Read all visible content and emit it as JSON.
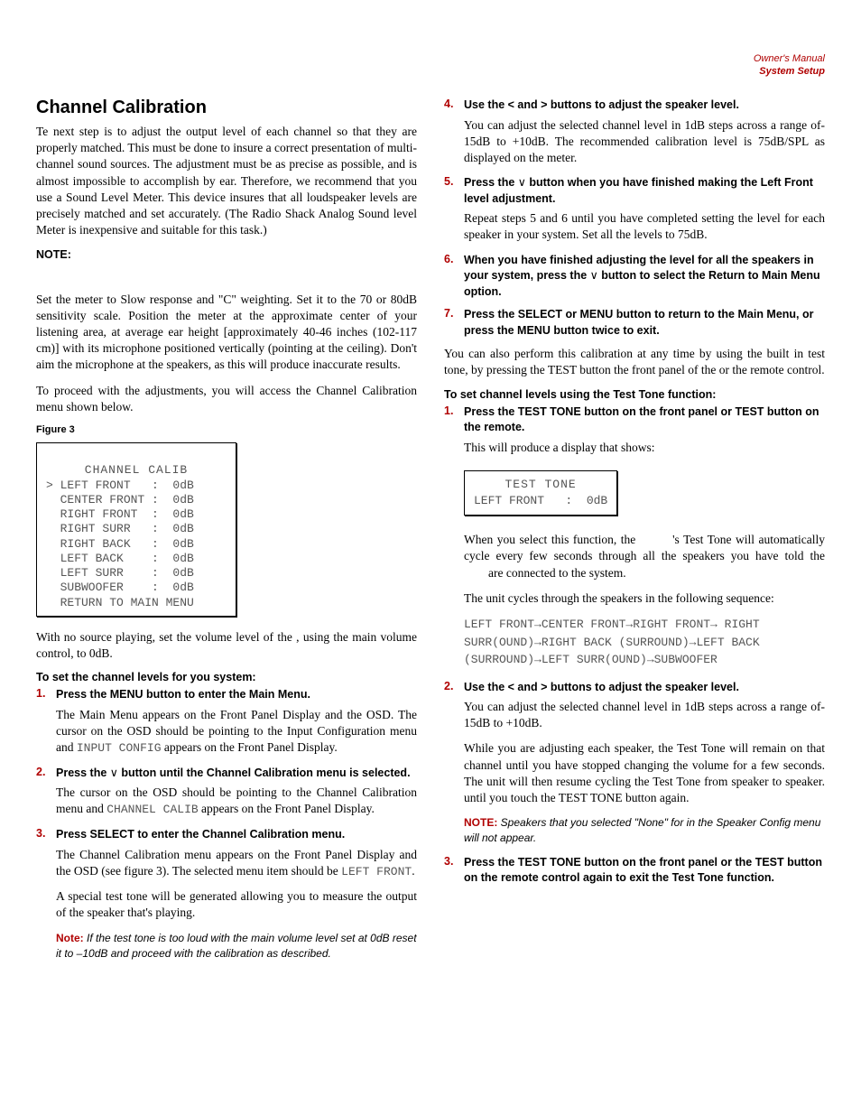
{
  "header": {
    "line1": "Owner's Manual",
    "line2": "System Setup"
  },
  "left": {
    "h1": "Channel Calibration",
    "p1": "Te next step is to adjust the output level of each channel so that they are properly matched. This must be done to insure a correct presentation of multi-channel sound sources. The adjustment must be as precise as possible, and is almost impossible to accomplish by ear. Therefore, we recommend that you use a Sound Level Meter. This device insures that all loudspeaker levels are precisely matched and set accurately. (The Radio Shack Analog Sound level Meter is inexpensive and suitable for this task.)",
    "noteLabel": "NOTE:",
    "p2": "Set the meter to Slow response and \"C\" weighting. Set it to the 70 or 80dB sensitivity scale. Position the meter at the approximate center of your listening area, at average ear height [approximately 40-46 inches (102-117 cm)] with its microphone positioned vertically (pointing at the ceiling). Don't aim the microphone at the speakers, as this will produce inaccurate results.",
    "p3": "To proceed with the adjustments, you will access the Channel Calibration menu shown below.",
    "figLabel": "Figure 3",
    "osd": {
      "title": "CHANNEL CALIB",
      "rows": [
        "> LEFT FRONT   :  0dB",
        "  CENTER FRONT :  0dB",
        "  RIGHT FRONT  :  0dB",
        "  RIGHT SURR   :  0dB",
        "  RIGHT BACK   :  0dB",
        "  LEFT BACK    :  0dB",
        "  LEFT SURR    :  0dB",
        "  SUBWOOFER    :  0dB",
        "  RETURN TO MAIN MENU"
      ]
    },
    "p4": "With no source playing, set the volume level of the           , using the main volume control, to 0dB.",
    "subhead": "To set the channel levels for you system:",
    "steps": {
      "s1": {
        "lead": "Press the MENU button to enter the Main Menu.",
        "body": "The Main Menu appears on the Front Panel Display and the OSD. The cursor on the OSD should be pointing to the Input Configuration menu and ",
        "mono": "INPUT CONFIG",
        "body2": " appears on the Front Panel Display."
      },
      "s2": {
        "lead": "Press the ∨ button until the Channel Calibration menu is selected.",
        "body": "The cursor on the OSD should be pointing to the Channel Calibration menu and ",
        "mono": "CHANNEL CALIB",
        "body2": " appears on the Front Panel Display."
      },
      "s3": {
        "lead": "Press SELECT to enter the Channel Calibration menu.",
        "body": "The Channel Calibration menu appears on the Front Panel Display and the OSD (see figure 3).  The selected menu item should be ",
        "mono": "LEFT FRONT",
        "body2": ".",
        "body3": "A special test tone will be generated allowing you to measure the output of the speaker that's playing.",
        "noteLabel": "Note:",
        "note": " If the test tone is too loud with the main volume level set at 0dB reset it to –10dB and proceed with the calibration as described."
      }
    }
  },
  "right": {
    "steps1": {
      "s4": {
        "lead": "Use the < and > buttons to adjust the speaker level.",
        "body": "You can adjust the selected channel level in 1dB steps across a range of-15dB to +10dB. The recommended calibration level is 75dB/SPL as displayed on the meter."
      },
      "s5": {
        "lead": "Press the ∨ button when you have finished making the Left Front level adjustment.",
        "body": "Repeat steps 5 and 6 until you have completed setting the level for each speaker in your system. Set all the levels to 75dB."
      },
      "s6": {
        "lead": "When you have finished adjusting the level for all the speakers in your system, press the ∨ button to select the Return to Main Menu option."
      },
      "s7": {
        "lead": "Press the SELECT or MENU button to return to the Main Menu, or press the MENU button twice to exit."
      }
    },
    "p1": "You can also perform this calibration at any time by using the built in test tone, by pressing the TEST button the front panel of the            or the remote control.",
    "subhead": "To set channel levels using the Test Tone function:",
    "steps2": {
      "s1": {
        "lead": "Press the TEST TONE button on the front panel or TEST button on the remote.",
        "body": "This will produce a display that shows:"
      },
      "osd": {
        "title": "TEST TONE",
        "row": "LEFT FRONT   :  0dB"
      },
      "p2a": "When you select this function, the ",
      "p2b": "'s Test Tone will automatically cycle every few seconds through all the speakers you have told the ",
      "p2c": "are connected to the system.",
      "p3": "The unit cycles through the speakers in the following sequence:",
      "seq": "LEFT FRONT→CENTER FRONT→RIGHT FRONT→ RIGHT SURR(OUND)→RIGHT BACK (SURROUND)→LEFT BACK (SURROUND)→LEFT SURR(OUND)→SUBWOOFER",
      "s2": {
        "lead": "Use the < and > buttons to adjust the speaker level.",
        "body": "You can adjust the selected channel level in 1dB steps across a range of-15dB to +10dB.",
        "body2": "While you are adjusting each speaker, the Test Tone will remain on that channel until you have stopped changing the volume for a few seconds. The unit will then resume cycling the Test Tone from speaker to speaker. until you touch the TEST TONE button again.",
        "noteLabel": "NOTE:",
        "note": " Speakers that you selected \"None\" for in the Speaker Config menu will not appear."
      },
      "s3": {
        "lead": "Press the TEST TONE button on the front panel or the TEST button on the remote control again to exit the Test Tone function."
      }
    }
  }
}
